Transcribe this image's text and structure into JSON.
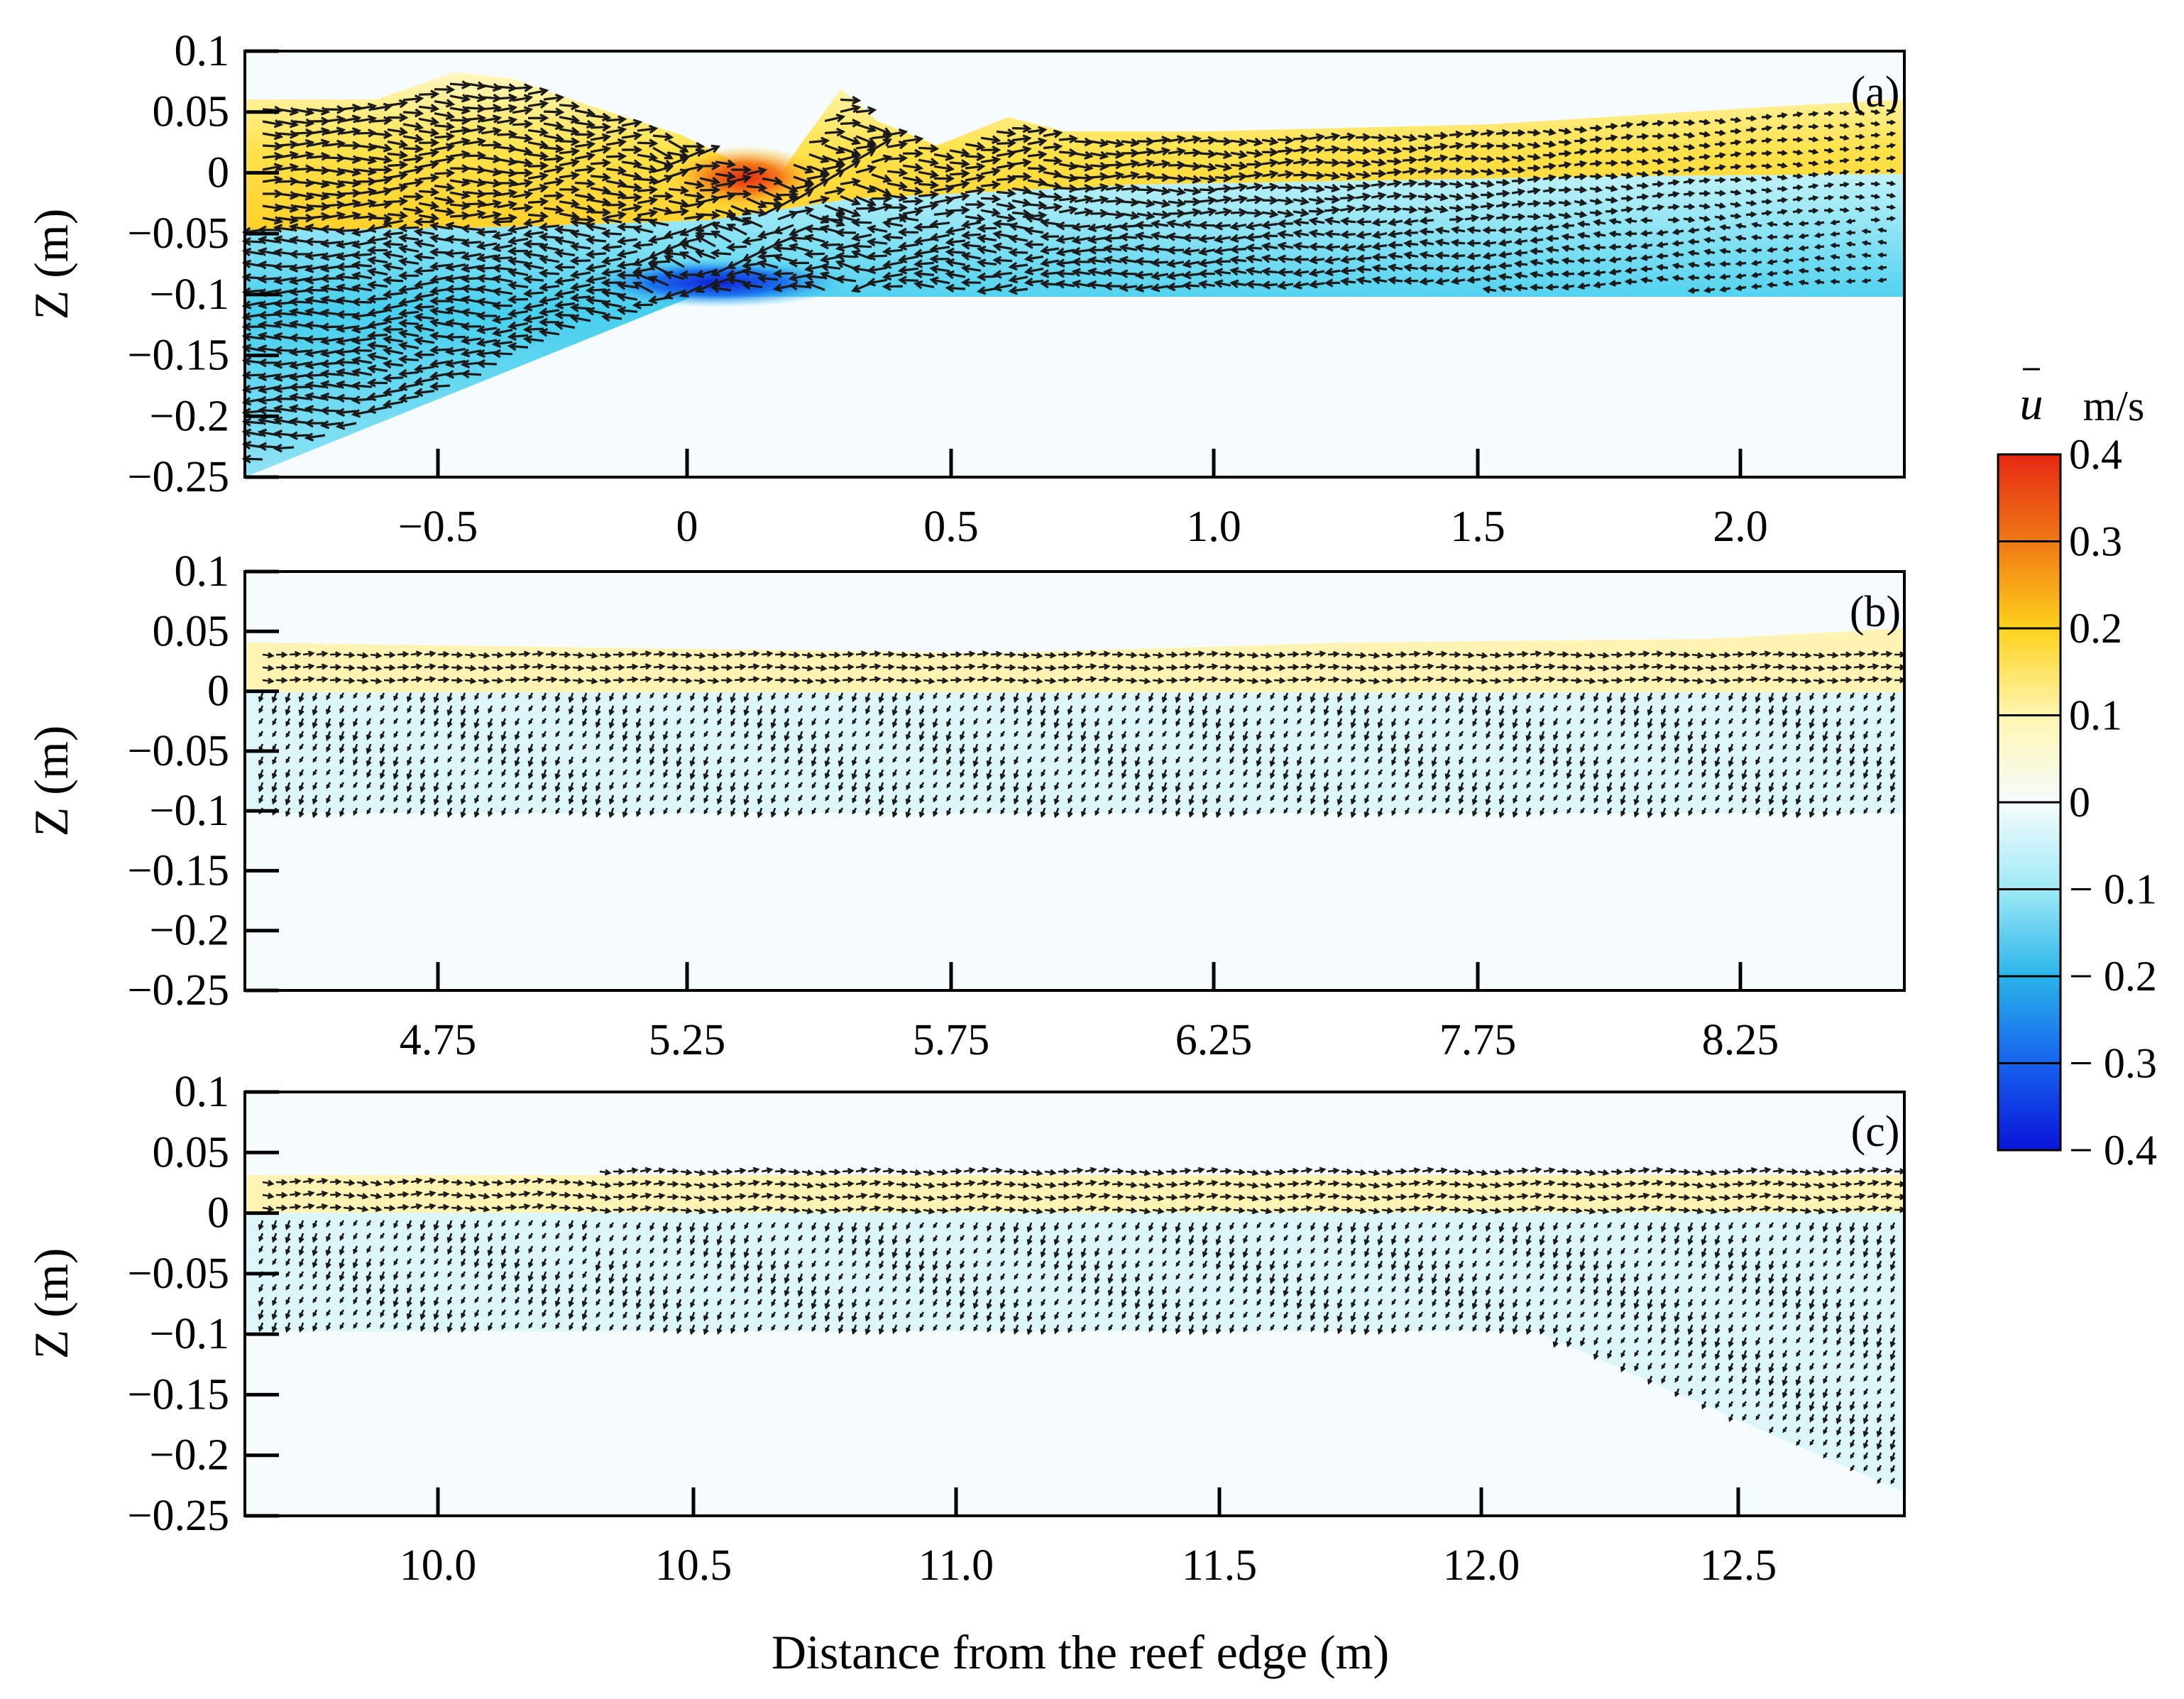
{
  "figure": {
    "xlabel": "Distance from the reef edge (m)",
    "colorbar": {
      "symbol": "u",
      "unit": "m/s",
      "ticks": [
        "0.4",
        "0.3",
        "0.2",
        "0.1",
        "0",
        "− 0.1",
        "− 0.2",
        "− 0.3",
        "− 0.4"
      ],
      "range": [
        -0.4,
        0.4
      ],
      "colors": [
        "#0a14d8",
        "#1466f0",
        "#22b4ea",
        "#8ee6f2",
        "#eefafc",
        "#fffff0",
        "#fff3a0",
        "#ffe030",
        "#ffb41c",
        "#f07814",
        "#e62814"
      ]
    }
  },
  "chart_data": [
    {
      "type": "quiver",
      "panel": "(a)",
      "title": "",
      "ylabel": "Z (m)",
      "ylim": [
        -0.25,
        0.1
      ],
      "yticks": [
        "0.1",
        "0.05",
        "0",
        "−0.05",
        "−0.1",
        "−0.15",
        "−0.2",
        "−0.25"
      ],
      "xlim": [
        -0.87,
        2.4
      ],
      "xticks": [
        "−0.5",
        "0",
        "0.5",
        "1.0",
        "1.5",
        "2.0"
      ],
      "xtick_values": [
        -0.5,
        0,
        0.5,
        1.0,
        1.5,
        2.0
      ],
      "bathymetry": [
        [
          -0.87,
          -0.25
        ],
        [
          0,
          -0.105
        ],
        [
          2.4,
          -0.105
        ]
      ],
      "surface": [
        [
          -0.87,
          0.05
        ],
        [
          -0.6,
          0.05
        ],
        [
          -0.4,
          0.07
        ],
        [
          -0.2,
          0.05
        ],
        [
          0.05,
          0.02
        ],
        [
          0.15,
          -0.01
        ],
        [
          0.28,
          0.055
        ],
        [
          0.45,
          0.02
        ],
        [
          0.6,
          0.035
        ],
        [
          0.8,
          0.025
        ],
        [
          1.5,
          0.03
        ],
        [
          2.0,
          0.035
        ],
        [
          2.4,
          0.04
        ]
      ],
      "u_mean_onshore_layer": 0.13,
      "u_mean_offshore_layer": -0.12,
      "u_peak_positive": 0.32,
      "u_peak_positive_x": 0.1,
      "u_peak_negative": -0.32,
      "u_peak_negative_x": 0.05,
      "layer_interface_z": -0.05
    },
    {
      "type": "quiver",
      "panel": "(b)",
      "ylabel": "Z (m)",
      "ylim": [
        -0.25,
        0.1
      ],
      "yticks": [
        "0.1",
        "0.05",
        "0",
        "−0.05",
        "−0.1",
        "−0.15",
        "−0.2",
        "−0.25"
      ],
      "xticks": [
        "4.75",
        "5.25",
        "5.75",
        "6.25",
        "7.75",
        "8.25"
      ],
      "bathymetry_z": -0.105,
      "surface_z": 0.025,
      "u_mean_onshore_layer": 0.05,
      "u_mean_offshore_layer": -0.05,
      "layer_interface_z": -0.01
    },
    {
      "type": "quiver",
      "panel": "(c)",
      "ylabel": "Z (m)",
      "ylim": [
        -0.25,
        0.1
      ],
      "yticks": [
        "0.1",
        "0.05",
        "0",
        "−0.05",
        "−0.1",
        "−0.15",
        "−0.2",
        "−0.25"
      ],
      "xlim": [
        9.63,
        12.85
      ],
      "xticks": [
        "10.0",
        "10.5",
        "11.0",
        "11.5",
        "12.0",
        "12.5"
      ],
      "xtick_values": [
        10.0,
        10.5,
        11.0,
        11.5,
        12.0,
        12.5
      ],
      "bathymetry": [
        [
          9.63,
          -0.1
        ],
        [
          12.05,
          -0.1
        ],
        [
          12.85,
          -0.22
        ]
      ],
      "surface_z": 0.018,
      "u_mean_onshore_layer": 0.05,
      "u_mean_offshore_layer": -0.04,
      "layer_interface_z": -0.008
    }
  ]
}
